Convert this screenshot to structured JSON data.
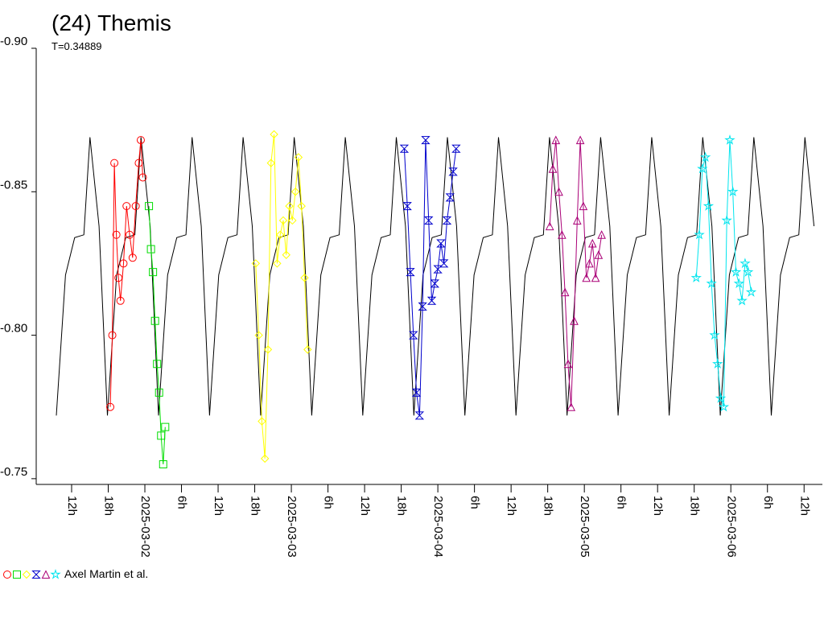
{
  "chart_data": {
    "type": "scatter",
    "title": "(24) Themis",
    "subtitle": "T=0.34889",
    "legend_label": "Axel Martin et al.",
    "ylim": [
      -0.748,
      -0.9
    ],
    "yticks": [
      {
        "value": -0.9,
        "label": "-0.90"
      },
      {
        "value": -0.85,
        "label": "-0.85"
      },
      {
        "value": -0.8,
        "label": "-0.80"
      },
      {
        "value": -0.75,
        "label": "-0.75"
      }
    ],
    "xlim": [
      "2025-03-01T06:12",
      "2025-03-06T15:00"
    ],
    "xticks": [
      {
        "value": "2025-03-01T12:00",
        "label": "12h"
      },
      {
        "value": "2025-03-01T18:00",
        "label": "18h"
      },
      {
        "value": "2025-03-02T00:00",
        "label": "2025-03-02"
      },
      {
        "value": "2025-03-02T06:00",
        "label": "6h"
      },
      {
        "value": "2025-03-02T12:00",
        "label": "12h"
      },
      {
        "value": "2025-03-02T18:00",
        "label": "18h"
      },
      {
        "value": "2025-03-03T00:00",
        "label": "2025-03-03"
      },
      {
        "value": "2025-03-03T06:00",
        "label": "6h"
      },
      {
        "value": "2025-03-03T12:00",
        "label": "12h"
      },
      {
        "value": "2025-03-03T18:00",
        "label": "18h"
      },
      {
        "value": "2025-03-04T00:00",
        "label": "2025-03-04"
      },
      {
        "value": "2025-03-04T06:00",
        "label": "6h"
      },
      {
        "value": "2025-03-04T12:00",
        "label": "12h"
      },
      {
        "value": "2025-03-04T18:00",
        "label": "18h"
      },
      {
        "value": "2025-03-05T00:00",
        "label": "2025-03-05"
      },
      {
        "value": "2025-03-05T06:00",
        "label": "6h"
      },
      {
        "value": "2025-03-05T12:00",
        "label": "12h"
      },
      {
        "value": "2025-03-05T18:00",
        "label": "18h"
      },
      {
        "value": "2025-03-06T00:00",
        "label": "2025-03-06"
      },
      {
        "value": "2025-03-06T06:00",
        "label": "6h"
      },
      {
        "value": "2025-03-06T12:00",
        "label": "12h"
      }
    ],
    "model": {
      "color": "#000000",
      "x": [
        "2025-03-01T09:30",
        "2025-03-01T11:00",
        "2025-03-01T12:30",
        "2025-03-01T14:00",
        "2025-03-01T15:00",
        "2025-03-01T16:30",
        "2025-03-01T17:52",
        "2025-03-01T19:22",
        "2025-03-01T20:52",
        "2025-03-01T22:22",
        "2025-03-01T23:22",
        "2025-03-02T00:52",
        "2025-03-02T02:14",
        "2025-03-02T03:44",
        "2025-03-02T05:14",
        "2025-03-02T06:44",
        "2025-03-02T07:44",
        "2025-03-02T09:14",
        "2025-03-02T10:36",
        "2025-03-02T12:06",
        "2025-03-02T13:36",
        "2025-03-02T15:06",
        "2025-03-02T16:06",
        "2025-03-02T17:36",
        "2025-03-02T18:58",
        "2025-03-02T20:28",
        "2025-03-02T21:58",
        "2025-03-02T23:28",
        "2025-03-03T00:28",
        "2025-03-03T01:58",
        "2025-03-03T03:20",
        "2025-03-03T04:50",
        "2025-03-03T06:20",
        "2025-03-03T07:50",
        "2025-03-03T08:50",
        "2025-03-03T10:20",
        "2025-03-03T11:42",
        "2025-03-03T13:12",
        "2025-03-03T14:42",
        "2025-03-03T16:12",
        "2025-03-03T17:12",
        "2025-03-03T18:42",
        "2025-03-03T20:04",
        "2025-03-03T21:34",
        "2025-03-03T23:04",
        "2025-03-04T00:34",
        "2025-03-04T01:34",
        "2025-03-04T03:04",
        "2025-03-04T04:26",
        "2025-03-04T05:56",
        "2025-03-04T07:26",
        "2025-03-04T08:56",
        "2025-03-04T09:56",
        "2025-03-04T11:26",
        "2025-03-04T12:48",
        "2025-03-04T14:18",
        "2025-03-04T15:48",
        "2025-03-04T17:18",
        "2025-03-04T18:18",
        "2025-03-04T19:48",
        "2025-03-04T21:10",
        "2025-03-04T22:40",
        "2025-03-05T00:10",
        "2025-03-05T01:40",
        "2025-03-05T02:40",
        "2025-03-05T04:10",
        "2025-03-05T05:32",
        "2025-03-05T07:02",
        "2025-03-05T08:32",
        "2025-03-05T10:02",
        "2025-03-05T11:02",
        "2025-03-05T12:32",
        "2025-03-05T13:54",
        "2025-03-05T15:24",
        "2025-03-05T16:54",
        "2025-03-05T18:24",
        "2025-03-05T19:24",
        "2025-03-05T20:54",
        "2025-03-05T22:16",
        "2025-03-05T23:46",
        "2025-03-06T01:16",
        "2025-03-06T02:46",
        "2025-03-06T03:46",
        "2025-03-06T05:16",
        "2025-03-06T06:38",
        "2025-03-06T08:08",
        "2025-03-06T09:38",
        "2025-03-06T11:08",
        "2025-03-06T12:08",
        "2025-03-06T13:38"
      ],
      "values": [
        -0.772,
        -0.821,
        -0.834,
        -0.835,
        -0.869,
        -0.838,
        -0.772,
        -0.821,
        -0.834,
        -0.835,
        -0.869,
        -0.838,
        -0.772,
        -0.821,
        -0.834,
        -0.835,
        -0.869,
        -0.838,
        -0.772,
        -0.821,
        -0.834,
        -0.835,
        -0.869,
        -0.838,
        -0.772,
        -0.821,
        -0.834,
        -0.835,
        -0.869,
        -0.838,
        -0.772,
        -0.821,
        -0.834,
        -0.835,
        -0.869,
        -0.838,
        -0.772,
        -0.821,
        -0.834,
        -0.835,
        -0.869,
        -0.838,
        -0.772,
        -0.821,
        -0.834,
        -0.835,
        -0.869,
        -0.838,
        -0.772,
        -0.821,
        -0.834,
        -0.835,
        -0.869,
        -0.838,
        -0.772,
        -0.821,
        -0.834,
        -0.835,
        -0.869,
        -0.838,
        -0.772,
        -0.821,
        -0.834,
        -0.835,
        -0.869,
        -0.838,
        -0.772,
        -0.821,
        -0.834,
        -0.835,
        -0.869,
        -0.838,
        -0.772,
        -0.821,
        -0.834,
        -0.835,
        -0.869,
        -0.838,
        -0.772,
        -0.821,
        -0.834,
        -0.835,
        -0.869,
        -0.838,
        -0.772,
        -0.821,
        -0.834,
        -0.835,
        -0.869,
        -0.838
      ]
    },
    "series": [
      {
        "color": "#ff0000",
        "symbol": "circle",
        "x": [
          "2025-03-01T18:20",
          "2025-03-01T18:40",
          "2025-03-01T19:00",
          "2025-03-01T19:20",
          "2025-03-01T19:40",
          "2025-03-01T20:00",
          "2025-03-01T20:30",
          "2025-03-01T21:00",
          "2025-03-01T21:30",
          "2025-03-01T22:00",
          "2025-03-01T22:30",
          "2025-03-01T23:00",
          "2025-03-01T23:20",
          "2025-03-01T23:40"
        ],
        "values": [
          -0.775,
          -0.8,
          -0.86,
          -0.835,
          -0.82,
          -0.812,
          -0.825,
          -0.845,
          -0.835,
          -0.827,
          -0.845,
          -0.86,
          -0.868,
          -0.855
        ]
      },
      {
        "color": "#00dd00",
        "symbol": "square",
        "x": [
          "2025-03-02T00:40",
          "2025-03-02T01:00",
          "2025-03-02T01:20",
          "2025-03-02T01:40",
          "2025-03-02T02:00",
          "2025-03-02T02:20",
          "2025-03-02T02:40",
          "2025-03-02T03:00",
          "2025-03-02T03:20"
        ],
        "values": [
          -0.845,
          -0.83,
          -0.822,
          -0.805,
          -0.79,
          -0.78,
          -0.765,
          -0.755,
          -0.768
        ]
      },
      {
        "color": "#ffff00",
        "symbol": "diamond",
        "x": [
          "2025-03-02T18:10",
          "2025-03-02T18:40",
          "2025-03-02T19:10",
          "2025-03-02T19:40",
          "2025-03-02T20:10",
          "2025-03-02T20:40",
          "2025-03-02T21:10",
          "2025-03-02T21:40",
          "2025-03-02T22:10",
          "2025-03-02T22:40",
          "2025-03-02T23:10",
          "2025-03-02T23:40",
          "2025-03-03T00:10",
          "2025-03-03T00:40",
          "2025-03-03T01:10",
          "2025-03-03T01:40",
          "2025-03-03T02:10",
          "2025-03-03T02:40"
        ],
        "values": [
          -0.825,
          -0.8,
          -0.77,
          -0.757,
          -0.795,
          -0.86,
          -0.87,
          -0.825,
          -0.835,
          -0.84,
          -0.828,
          -0.845,
          -0.84,
          -0.85,
          -0.862,
          -0.845,
          -0.82,
          -0.795
        ]
      },
      {
        "color": "#0000cc",
        "symbol": "hourglass",
        "x": [
          "2025-03-03T18:30",
          "2025-03-03T19:00",
          "2025-03-03T19:30",
          "2025-03-03T20:00",
          "2025-03-03T20:30",
          "2025-03-03T21:00",
          "2025-03-03T21:30",
          "2025-03-03T22:00",
          "2025-03-03T22:30",
          "2025-03-03T23:00",
          "2025-03-03T23:30",
          "2025-03-04T00:00",
          "2025-03-04T00:30",
          "2025-03-04T01:00",
          "2025-03-04T01:30",
          "2025-03-04T02:00",
          "2025-03-04T02:30",
          "2025-03-04T03:00"
        ],
        "values": [
          -0.865,
          -0.845,
          -0.822,
          -0.8,
          -0.78,
          -0.772,
          -0.81,
          -0.868,
          -0.84,
          -0.812,
          -0.818,
          -0.823,
          -0.832,
          -0.825,
          -0.84,
          -0.848,
          -0.857,
          -0.865
        ]
      },
      {
        "color": "#aa0077",
        "symbol": "triangle",
        "x": [
          "2025-03-04T18:20",
          "2025-03-04T18:50",
          "2025-03-04T19:20",
          "2025-03-04T19:50",
          "2025-03-04T20:20",
          "2025-03-04T20:50",
          "2025-03-04T21:20",
          "2025-03-04T21:50",
          "2025-03-04T22:20",
          "2025-03-04T22:50",
          "2025-03-04T23:20",
          "2025-03-04T23:50",
          "2025-03-05T00:20",
          "2025-03-05T00:50",
          "2025-03-05T01:20",
          "2025-03-05T01:50",
          "2025-03-05T02:20",
          "2025-03-05T02:50"
        ],
        "values": [
          -0.838,
          -0.858,
          -0.868,
          -0.85,
          -0.835,
          -0.815,
          -0.79,
          -0.775,
          -0.805,
          -0.84,
          -0.868,
          -0.845,
          -0.82,
          -0.825,
          -0.832,
          -0.82,
          -0.828,
          -0.835
        ]
      },
      {
        "color": "#00e5ee",
        "symbol": "star",
        "x": [
          "2025-03-05T18:20",
          "2025-03-05T18:50",
          "2025-03-05T19:20",
          "2025-03-05T19:50",
          "2025-03-05T20:20",
          "2025-03-05T20:50",
          "2025-03-05T21:20",
          "2025-03-05T21:50",
          "2025-03-05T22:20",
          "2025-03-05T22:50",
          "2025-03-05T23:20",
          "2025-03-05T23:50",
          "2025-03-06T00:20",
          "2025-03-06T00:50",
          "2025-03-06T01:20",
          "2025-03-06T01:50",
          "2025-03-06T02:20",
          "2025-03-06T02:50",
          "2025-03-06T03:20"
        ],
        "values": [
          -0.82,
          -0.835,
          -0.858,
          -0.862,
          -0.845,
          -0.818,
          -0.8,
          -0.79,
          -0.778,
          -0.775,
          -0.84,
          -0.868,
          -0.85,
          -0.822,
          -0.818,
          -0.812,
          -0.825,
          -0.822,
          -0.815
        ]
      }
    ]
  }
}
